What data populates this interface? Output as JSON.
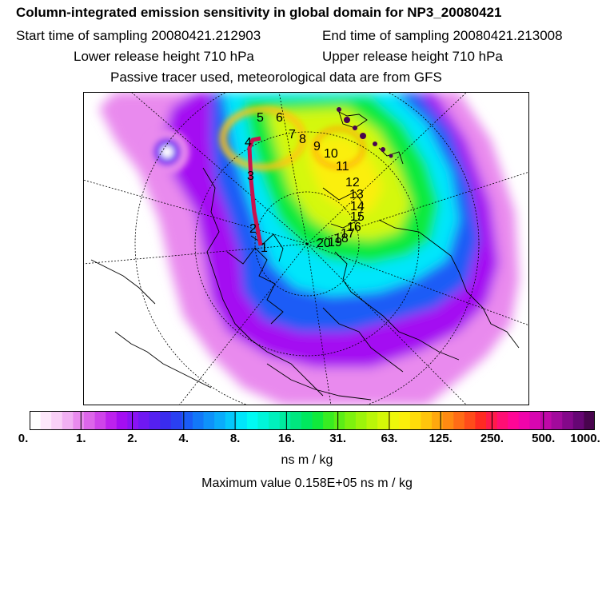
{
  "title": "Column-integrated emission sensitivity in global domain for NP3_20080421",
  "start_time": "Start time of sampling 20080421.212903",
  "end_time": "End time of sampling 20080421.213008",
  "lower_release": "Lower release height  710 hPa",
  "upper_release": "Upper release height  710 hPa",
  "tracer_note": "Passive tracer used, meteorological data are from GFS",
  "track_labels": [
    "1",
    "2",
    "3",
    "4",
    "5",
    "6",
    "7",
    "8",
    "9",
    "10",
    "11",
    "12",
    "13",
    "14",
    "15",
    "16",
    "17",
    "18",
    "19",
    "20"
  ],
  "colorbar": {
    "ticks": [
      "0.",
      "1.",
      "2.",
      "4.",
      "8.",
      "16.",
      "31.",
      "63.",
      "125.",
      "250.",
      "500.",
      "1000."
    ],
    "colors": [
      "#ffffff",
      "#fde7fb",
      "#f9d0f7",
      "#f1b0f3",
      "#e98aee",
      "#dd66ea",
      "#cf44ea",
      "#bd22ee",
      "#a40ef2",
      "#8a12f4",
      "#7018f2",
      "#5520f0",
      "#3a2cee",
      "#2a40f2",
      "#1a5cf6",
      "#1278f8",
      "#0e92fa",
      "#0aacfb",
      "#05c8fb",
      "#00e6fb",
      "#00fbf3",
      "#00f5d9",
      "#00f0bd",
      "#00eb9f",
      "#00e77f",
      "#00e85e",
      "#10ea3c",
      "#38ec22",
      "#5cee16",
      "#7ef20e",
      "#9df40a",
      "#baf608",
      "#d4f808",
      "#eef80a",
      "#fbef0a",
      "#ffdc0a",
      "#ffc40c",
      "#ffa80e",
      "#ff8a12",
      "#ff6c16",
      "#ff4c1a",
      "#ff2a22",
      "#ff1a4a",
      "#ff0e74",
      "#ff0696",
      "#f004aa",
      "#d806b0",
      "#c008a8",
      "#a20a9c",
      "#84088a",
      "#660674",
      "#48044e"
    ],
    "units": "ns m / kg"
  },
  "max_value": "Maximum value  0.158E+05 ns m / kg",
  "colors": {
    "background": "#ffffff",
    "track": "#c8124e",
    "coast": "#000000"
  }
}
